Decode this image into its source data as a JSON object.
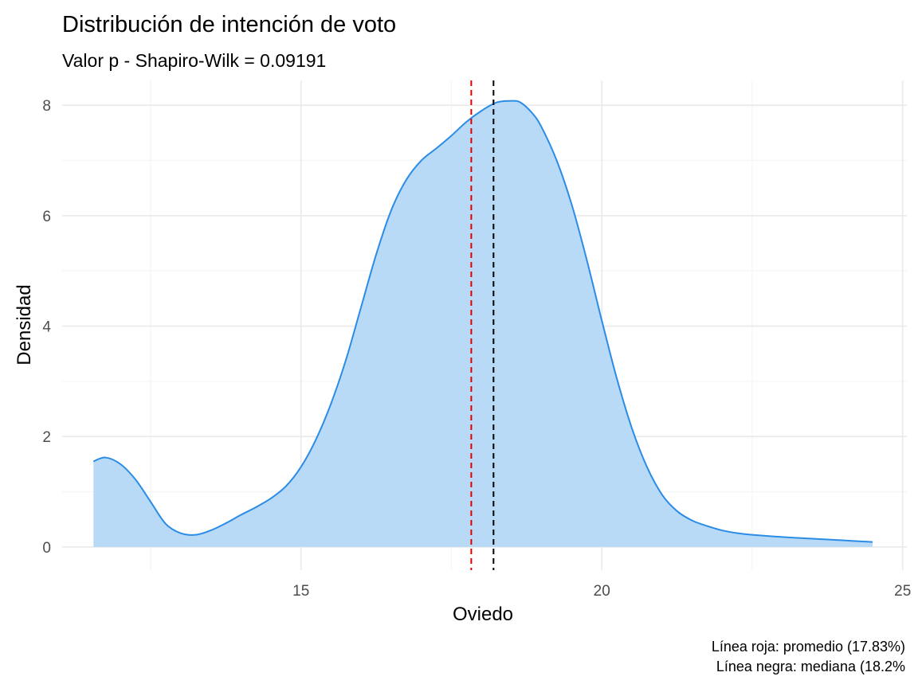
{
  "chart_data": {
    "type": "area",
    "title": "Distribución de intención de voto",
    "subtitle": "Valor p - Shapiro-Wilk = 0.09191",
    "xlabel": "Oviedo",
    "ylabel": "Densidad",
    "xlim": [
      11.03,
      25.07
    ],
    "ylim": [
      -0.42,
      8.45
    ],
    "x_ticks": [
      15,
      20,
      25
    ],
    "y_ticks": [
      0,
      2,
      4,
      6,
      8
    ],
    "grid": true,
    "density": {
      "x": [
        11.55,
        11.75,
        12.0,
        12.25,
        12.5,
        12.75,
        13.0,
        13.25,
        13.5,
        13.75,
        14.0,
        14.25,
        14.5,
        14.75,
        15.0,
        15.25,
        15.5,
        15.75,
        16.0,
        16.25,
        16.5,
        16.75,
        17.0,
        17.25,
        17.5,
        17.75,
        18.0,
        18.25,
        18.5,
        18.65,
        18.85,
        19.0,
        19.25,
        19.5,
        19.75,
        20.0,
        20.25,
        20.5,
        20.75,
        21.0,
        21.25,
        21.5,
        21.75,
        22.0,
        22.25,
        22.5,
        23.0,
        23.5,
        24.0,
        24.5
      ],
      "y": [
        1.55,
        1.62,
        1.5,
        1.22,
        0.82,
        0.42,
        0.25,
        0.22,
        0.3,
        0.43,
        0.58,
        0.72,
        0.88,
        1.1,
        1.45,
        1.95,
        2.6,
        3.4,
        4.35,
        5.3,
        6.1,
        6.65,
        7.0,
        7.22,
        7.45,
        7.7,
        7.9,
        8.05,
        8.08,
        8.05,
        7.85,
        7.6,
        7.0,
        6.2,
        5.2,
        4.1,
        3.05,
        2.15,
        1.45,
        0.95,
        0.65,
        0.48,
        0.38,
        0.3,
        0.25,
        0.22,
        0.18,
        0.15,
        0.12,
        0.09
      ]
    },
    "mean": 17.83,
    "median": 18.2,
    "colors": {
      "fill": "#b8daf6",
      "line": "#2b8ce6",
      "mean_line": "#e00000",
      "median_line": "#000000",
      "grid_major": "#ebebeb",
      "grid_minor": "#f5f5f5"
    },
    "caption_lines": [
      "Línea roja: promedio (17.83%)",
      "Línea negra: mediana (18.2%"
    ]
  }
}
